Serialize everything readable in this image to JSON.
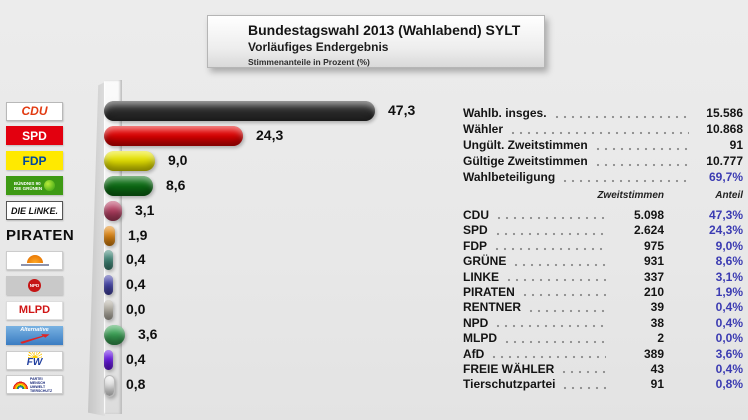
{
  "header": {
    "title": "Bundestagswahl 2013 (Wahlabend) SYLT",
    "subtitle": "Vorläufiges Endergebnis",
    "note": "Stimmenanteile in Prozent (%)"
  },
  "summary": {
    "rows": [
      {
        "label": "Wahlb. insges.",
        "value": "15.586",
        "highlight": false
      },
      {
        "label": "Wähler",
        "value": "10.868",
        "highlight": false
      },
      {
        "label": "Ungült. Zweitstimmen",
        "value": "91",
        "highlight": false
      },
      {
        "label": "Gültige Zweitstimmen",
        "value": "10.777",
        "highlight": false
      },
      {
        "label": "Wahlbeteiligung",
        "value": "69,7%",
        "highlight": true
      }
    ]
  },
  "results_table": {
    "votes_header": "Zweitstimmen",
    "share_header": "Anteil",
    "rows": [
      {
        "party": "CDU",
        "votes": "5.098",
        "share": "47,3%"
      },
      {
        "party": "SPD",
        "votes": "2.624",
        "share": "24,3%"
      },
      {
        "party": "FDP",
        "votes": "975",
        "share": "9,0%"
      },
      {
        "party": "GRÜNE",
        "votes": "931",
        "share": "8,6%"
      },
      {
        "party": "LINKE",
        "votes": "337",
        "share": "3,1%"
      },
      {
        "party": "PIRATEN",
        "votes": "210",
        "share": "1,9%"
      },
      {
        "party": "RENTNER",
        "votes": "39",
        "share": "0,4%"
      },
      {
        "party": "NPD",
        "votes": "38",
        "share": "0,4%"
      },
      {
        "party": "MLPD",
        "votes": "2",
        "share": "0,0%"
      },
      {
        "party": "AfD",
        "votes": "389",
        "share": "3,6%"
      },
      {
        "party": "FREIE WÄHLER",
        "votes": "43",
        "share": "0,4%"
      },
      {
        "party": "Tierschutzpartei",
        "votes": "91",
        "share": "0,8%"
      }
    ]
  },
  "chart_data": {
    "type": "bar",
    "orientation": "horizontal",
    "title": "Stimmenanteile in Prozent (%)",
    "categories": [
      "CDU",
      "SPD",
      "FDP",
      "GRÜNE",
      "LINKE",
      "PIRATEN",
      "RENTNER",
      "NPD",
      "MLPD",
      "AfD",
      "FREIE WÄHLER",
      "Tierschutzpartei"
    ],
    "values": [
      47.3,
      24.3,
      9.0,
      8.6,
      3.1,
      1.9,
      0.4,
      0.4,
      0.0,
      3.6,
      0.4,
      0.8
    ],
    "value_labels": [
      "47,3",
      "24,3",
      "9,0",
      "8,6",
      "3,1",
      "1,9",
      "0,4",
      "0,4",
      "0,0",
      "3,6",
      "0,4",
      "0,8"
    ],
    "xlim": [
      0,
      50
    ],
    "grid": false,
    "legend": false
  },
  "parties": [
    {
      "id": "cdu",
      "name": "CDU",
      "percent": 47.3,
      "label": "47,3",
      "bar_color": "#2f2f2f",
      "logo": {
        "style": "box",
        "bg": "#ffffff",
        "color": "#e23b12",
        "text": "CDU",
        "border": "#b8b8b8",
        "italic": true,
        "size": 12
      }
    },
    {
      "id": "spd",
      "name": "SPD",
      "percent": 24.3,
      "label": "24,3",
      "bar_color": "#e10000",
      "logo": {
        "style": "box",
        "bg": "#e3000f",
        "color": "#ffffff",
        "text": "SPD",
        "size": 12
      }
    },
    {
      "id": "fdp",
      "name": "FDP",
      "percent": 9.0,
      "label": "9,0",
      "bar_color": "#e8e400",
      "logo": {
        "style": "box",
        "bg": "#ffe900",
        "color": "#00479e",
        "text": "FDP",
        "size": 12
      }
    },
    {
      "id": "gruene",
      "name": "GRÜNE",
      "percent": 8.6,
      "label": "8,6",
      "bar_color": "#0c6e14",
      "logo": {
        "style": "gruene",
        "bg": "#3e9a14",
        "lines": [
          "BÜNDNIS 90",
          "DIE GRÜNEN"
        ]
      }
    },
    {
      "id": "linke",
      "name": "LINKE",
      "percent": 3.1,
      "label": "3,1",
      "bar_color": "#b84064",
      "logo": {
        "style": "box",
        "bg": "#ffffff",
        "color": "#111111",
        "text": "DIE LiNKE.",
        "border": "#555555",
        "italic": true,
        "size": 9
      }
    },
    {
      "id": "piraten",
      "name": "PIRATEN",
      "percent": 1.9,
      "label": "1,9",
      "bar_color": "#e88a10",
      "logo": {
        "style": "text",
        "text": "PIRATEN"
      }
    },
    {
      "id": "rentner",
      "name": "RENTNER",
      "percent": 0.4,
      "label": "0,4",
      "bar_color": "#3f8a7a",
      "logo": {
        "style": "rentner",
        "bg": "#ffffff",
        "border": "#cccccc"
      }
    },
    {
      "id": "npd",
      "name": "NPD",
      "percent": 0.4,
      "label": "0,4",
      "bar_color": "#4343ae",
      "logo": {
        "style": "npd",
        "bg": "#c9c9c9",
        "text": "NPD"
      }
    },
    {
      "id": "mlpd",
      "name": "MLPD",
      "percent": 0.0,
      "label": "0,0",
      "bar_color": "#bdb8ac",
      "logo": {
        "style": "box",
        "bg": "#ffffff",
        "color": "#d01616",
        "text": "MLPD",
        "border": "#dddddd",
        "size": 11
      }
    },
    {
      "id": "afd",
      "name": "AfD",
      "percent": 3.6,
      "label": "3,6",
      "bar_color": "#3aa455",
      "logo": {
        "style": "afd",
        "text": "Alternative"
      }
    },
    {
      "id": "fw",
      "name": "FREIE WÄHLER",
      "percent": 0.4,
      "label": "0,4",
      "bar_color": "#6a14ee",
      "logo": {
        "style": "fw",
        "bg": "#ffffff",
        "border": "#cccccc",
        "text": "FW"
      }
    },
    {
      "id": "tier",
      "name": "Tierschutzpartei",
      "percent": 0.8,
      "label": "0,8",
      "bar_color": "#f2f2f2",
      "bar_border": "#bbbbbb",
      "logo": {
        "style": "tier",
        "bg": "#ffffff",
        "border": "#cccccc",
        "text": "PARTEI MENSCH UMWELT TIERSCHUTZ"
      }
    }
  ],
  "colors": {
    "accent_blue": "#3b3bb2",
    "background": "#e9e9e9"
  }
}
